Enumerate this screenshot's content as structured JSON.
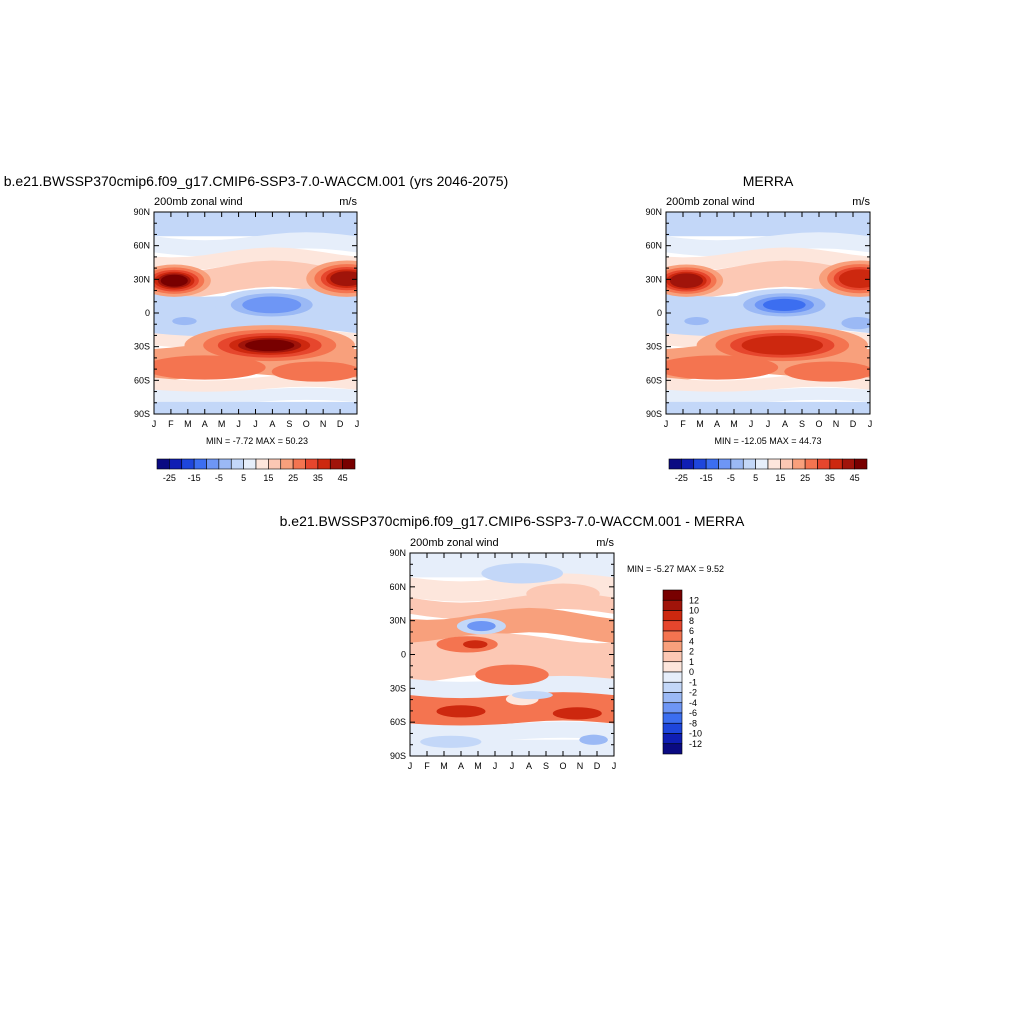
{
  "panels": [
    {
      "title": "b.e21.BWSSP370cmip6.f09_g17.CMIP6-SSP3-7.0-WACCM.001 (yrs 2046-2075)",
      "left_label": "200mb zonal wind",
      "right_label": "m/s",
      "stats": "MIN =  -7.72 MAX =  50.23"
    },
    {
      "title": "MERRA",
      "left_label": "200mb zonal wind",
      "right_label": "m/s",
      "stats": "MIN = -12.05 MAX =  44.73"
    },
    {
      "title": "b.e21.BWSSP370cmip6.f09_g17.CMIP6-SSP3-7.0-WACCM.001 - MERRA",
      "left_label": "200mb zonal wind",
      "right_label": "m/s",
      "stats": "MIN =  -5.27 MAX =   9.52"
    }
  ],
  "colors": {
    "levels": [
      "#0a0a82",
      "#0f1eb4",
      "#1e46dc",
      "#3c6ef0",
      "#6e96f5",
      "#9bb9f5",
      "#c3d7f8",
      "#e6eefa",
      "#fde6dc",
      "#fcc8b4",
      "#f8a07c",
      "#f47450",
      "#e6462d",
      "#cd280f",
      "#a0140a",
      "#780000"
    ]
  },
  "chart_data": [
    {
      "type": "heatmap",
      "title": "b.e21.BWSSP370cmip6.f09_g17.CMIP6-SSP3-7.0-WACCM.001 (yrs 2046-2075)",
      "xlabel": "",
      "ylabel": "",
      "x_ticks": [
        "J",
        "F",
        "M",
        "A",
        "M",
        "J",
        "J",
        "A",
        "S",
        "O",
        "N",
        "D",
        "J"
      ],
      "y_ticks": [
        "90N",
        "60N",
        "30N",
        "0",
        "30S",
        "60S",
        "90S"
      ],
      "y_range": [
        -90,
        90
      ],
      "units": "m/s",
      "min": -7.72,
      "max": 50.23,
      "colorbar_labels": [
        "-25",
        "-15",
        "-5",
        "5",
        "15",
        "25",
        "35",
        "45"
      ],
      "colorbar_orientation": "horizontal",
      "features": [
        {
          "name": "NH jet",
          "month_peak": 1,
          "lat": 30,
          "value": 45
        },
        {
          "name": "SH jet",
          "month_peak": 7.5,
          "lat": -30,
          "value": 50
        },
        {
          "name": "tropical easterlies",
          "month_peak": 7,
          "lat": 5,
          "value": -7
        }
      ]
    },
    {
      "type": "heatmap",
      "title": "MERRA",
      "xlabel": "",
      "ylabel": "",
      "x_ticks": [
        "J",
        "F",
        "M",
        "A",
        "M",
        "J",
        "J",
        "A",
        "S",
        "O",
        "N",
        "D",
        "J"
      ],
      "y_ticks": [
        "90N",
        "60N",
        "30N",
        "0",
        "30S",
        "60S",
        "90S"
      ],
      "y_range": [
        -90,
        90
      ],
      "units": "m/s",
      "min": -12.05,
      "max": 44.73,
      "colorbar_labels": [
        "-25",
        "-15",
        "-5",
        "5",
        "15",
        "25",
        "35",
        "45"
      ],
      "colorbar_orientation": "horizontal",
      "features": [
        {
          "name": "NH jet",
          "month_peak": 1,
          "lat": 30,
          "value": 40
        },
        {
          "name": "SH jet",
          "month_peak": 7.5,
          "lat": -30,
          "value": 35
        },
        {
          "name": "tropical easterlies",
          "month_peak": 7,
          "lat": 5,
          "value": -12
        }
      ]
    },
    {
      "type": "heatmap",
      "title": "b.e21.BWSSP370cmip6.f09_g17.CMIP6-SSP3-7.0-WACCM.001 - MERRA",
      "xlabel": "",
      "ylabel": "",
      "x_ticks": [
        "J",
        "F",
        "M",
        "A",
        "M",
        "J",
        "J",
        "A",
        "S",
        "O",
        "N",
        "D",
        "J"
      ],
      "y_ticks": [
        "90N",
        "60N",
        "30N",
        "0",
        "30S",
        "60S",
        "90S"
      ],
      "y_range": [
        -90,
        90
      ],
      "units": "m/s",
      "min": -5.27,
      "max": 9.52,
      "colorbar_labels": [
        "12",
        "10",
        "8",
        "6",
        "4",
        "2",
        "1",
        "0",
        "-1",
        "-2",
        "-4",
        "-6",
        "-8",
        "-10",
        "-12"
      ],
      "colorbar_orientation": "vertical"
    }
  ]
}
